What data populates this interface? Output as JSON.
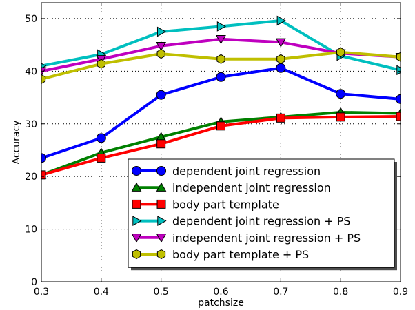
{
  "chart_data": {
    "type": "line",
    "title": "",
    "xlabel": "patchsize",
    "ylabel": "Accuracy",
    "xlim": [
      0.3,
      0.9
    ],
    "ylim": [
      0,
      53
    ],
    "xticks": [
      0.3,
      0.4,
      0.5,
      0.6,
      0.7,
      0.8,
      0.9
    ],
    "xtick_labels": [
      "0.3",
      "0.4",
      "0.5",
      "0.6",
      "0.7",
      "0.8",
      "0.9"
    ],
    "yticks": [
      0,
      10,
      20,
      30,
      40,
      50
    ],
    "ytick_labels": [
      "0",
      "10",
      "20",
      "30",
      "40",
      "50"
    ],
    "grid": true,
    "legend_position": "lower-right",
    "x": [
      0.3,
      0.4,
      0.5,
      0.6,
      0.7,
      0.8,
      0.9
    ],
    "series": [
      {
        "name": "dependent joint regression",
        "color": "#0000ff",
        "marker": "circle",
        "values": [
          23.5,
          27.3,
          35.5,
          38.9,
          40.6,
          35.7,
          34.7
        ]
      },
      {
        "name": "independent joint regression",
        "color": "#008000",
        "marker": "triangle-up",
        "values": [
          20.3,
          24.5,
          27.5,
          30.4,
          31.3,
          32.2,
          32.0
        ]
      },
      {
        "name": "body part template",
        "color": "#ff0000",
        "marker": "square",
        "values": [
          20.3,
          23.5,
          26.2,
          29.6,
          31.1,
          31.3,
          31.4
        ]
      },
      {
        "name": "dependent joint regression + PS",
        "color": "#00bfbf",
        "marker": "triangle-right",
        "values": [
          41.0,
          43.2,
          47.5,
          48.5,
          49.6,
          42.9,
          40.2
        ]
      },
      {
        "name": "independent joint regression + PS",
        "color": "#bf00bf",
        "marker": "triangle-down",
        "values": [
          40.0,
          42.3,
          44.8,
          46.1,
          45.5,
          43.4,
          42.7
        ]
      },
      {
        "name": "body part template + PS",
        "color": "#bfbf00",
        "marker": "hexagon",
        "values": [
          38.5,
          41.4,
          43.3,
          42.3,
          42.3,
          43.6,
          42.7
        ]
      }
    ]
  }
}
